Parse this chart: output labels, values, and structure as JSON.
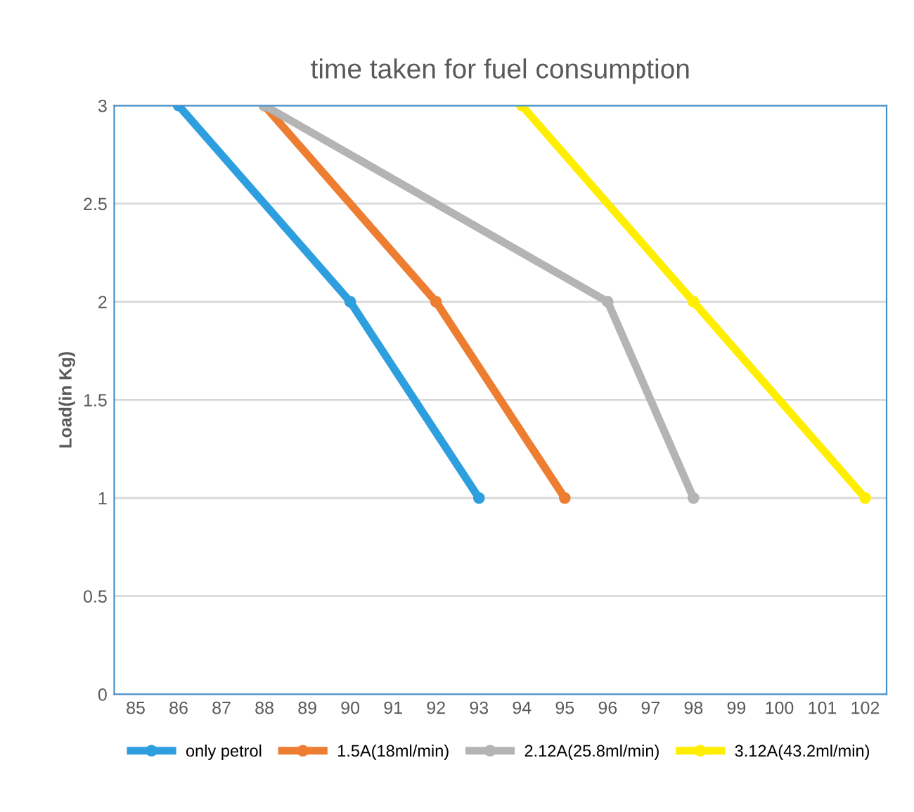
{
  "chart_data": {
    "type": "line",
    "title": "time taken for fuel consumption",
    "ylabel": "Load(in Kg)",
    "xlim": [
      84.5,
      102.5
    ],
    "xticks": [
      85,
      86,
      87,
      88,
      89,
      90,
      91,
      92,
      93,
      94,
      95,
      96,
      97,
      98,
      99,
      100,
      101,
      102
    ],
    "ylim": [
      0,
      3
    ],
    "yticks": [
      0,
      0.5,
      1,
      1.5,
      2,
      2.5,
      3
    ],
    "grid": "y",
    "legend": "bottom",
    "marker": "circle",
    "series": [
      {
        "name": "only petrol",
        "color": "#2e9fde",
        "x": [
          86,
          90,
          93
        ],
        "values": [
          3,
          2,
          1
        ]
      },
      {
        "name": "1.5A(18ml/min)",
        "color": "#ed7d31",
        "x": [
          88,
          92,
          95
        ],
        "values": [
          3,
          2,
          1
        ]
      },
      {
        "name": "2.12A(25.8ml/min)",
        "color": "#b4b4b4",
        "x": [
          88,
          96,
          98
        ],
        "values": [
          3,
          2,
          1
        ]
      },
      {
        "name": "3.12A(43.2ml/min)",
        "color": "#ffee00",
        "x": [
          94,
          98,
          102
        ],
        "values": [
          3,
          2,
          1
        ]
      }
    ]
  }
}
